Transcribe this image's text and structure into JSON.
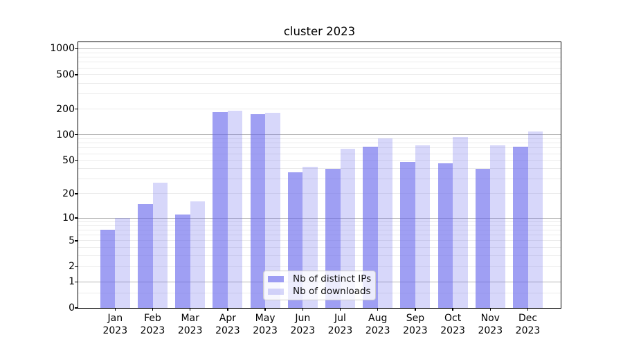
{
  "title": "cluster 2023",
  "colors": {
    "series_base": "#6666EC",
    "bar_distinct_ips": "#6666ECA0",
    "bar_downloads": "#6666EC42",
    "major_grid": "#B2B2B2",
    "minor_grid": "#EBEBEB",
    "axis": "#000000",
    "legend_border": "#CCCCCC"
  },
  "chart_data": {
    "type": "bar",
    "title": "cluster 2023",
    "xlabel": "",
    "ylabel": "",
    "scale": "log1p",
    "ylim": [
      0,
      1190
    ],
    "grid": true,
    "legend_position": "lower center",
    "categories": [
      "Jan 2023",
      "Feb 2023",
      "Mar 2023",
      "Apr 2023",
      "May 2023",
      "Jun 2023",
      "Jul 2023",
      "Aug 2023",
      "Sep 2023",
      "Oct 2023",
      "Nov 2023",
      "Dec 2023"
    ],
    "series": [
      {
        "name": "Nb of distinct IPs",
        "color": "#6666ECA0",
        "values": [
          7,
          15,
          11,
          185,
          175,
          36,
          40,
          73,
          48,
          46,
          40,
          72
        ]
      },
      {
        "name": "Nb of downloads",
        "color": "#6666EC42",
        "values": [
          10,
          27,
          16,
          190,
          182,
          42,
          68,
          90,
          75,
          95,
          75,
          110
        ]
      }
    ],
    "yticks": [
      0,
      1,
      2,
      5,
      10,
      20,
      50,
      100,
      200,
      500,
      1000
    ],
    "major_gridlines": [
      1,
      10,
      100,
      1000
    ],
    "minor_gridlines": [
      0.5,
      2,
      3,
      4,
      5,
      6,
      7,
      8,
      9,
      20,
      30,
      40,
      50,
      60,
      70,
      80,
      90,
      200,
      300,
      400,
      500,
      600,
      700,
      800,
      900
    ]
  }
}
